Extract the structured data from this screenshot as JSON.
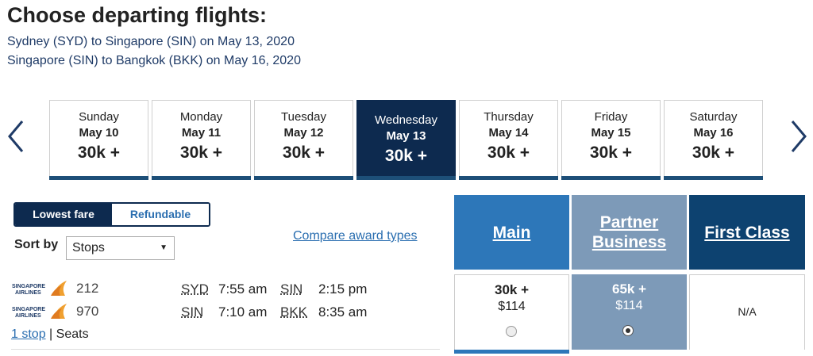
{
  "page": {
    "title": "Choose departing flights:",
    "routes": [
      "Sydney (SYD) to Singapore (SIN) on May 13, 2020",
      "Singapore (SIN) to Bangkok (BKK) on May 16, 2020"
    ]
  },
  "days": [
    {
      "day": "Sunday",
      "date": "May 10",
      "price": "30k +"
    },
    {
      "day": "Monday",
      "date": "May 11",
      "price": "30k +"
    },
    {
      "day": "Tuesday",
      "date": "May 12",
      "price": "30k +"
    },
    {
      "day": "Wednesday",
      "date": "May 13",
      "price": "30k +"
    },
    {
      "day": "Thursday",
      "date": "May 14",
      "price": "30k +"
    },
    {
      "day": "Friday",
      "date": "May 15",
      "price": "30k +"
    },
    {
      "day": "Saturday",
      "date": "May 16",
      "price": "30k +"
    }
  ],
  "selected_day": "Wednesday",
  "fare_toggle": {
    "lowest": "Lowest fare",
    "refundable": "Refundable"
  },
  "sort": {
    "label": "Sort by",
    "value": "Stops"
  },
  "compare_link": "Compare award types",
  "columns": {
    "main": "Main",
    "partner": "Partner Business",
    "first": "First Class"
  },
  "flight": {
    "segments": [
      {
        "airline": "SINGAPORE AIRLINES",
        "number": "212",
        "from": "SYD",
        "dep": "7:55 am",
        "to": "SIN",
        "arr": "2:15 pm"
      },
      {
        "airline": "SINGAPORE AIRLINES",
        "number": "970",
        "from": "SIN",
        "dep": "7:10 am",
        "to": "BKK",
        "arr": "8:35 am"
      }
    ],
    "stops_link": "1 stop",
    "separator": "|",
    "seats": "Seats",
    "fares": {
      "main": {
        "miles": "30k +",
        "cash": "$114"
      },
      "partner": {
        "miles": "65k +",
        "cash": "$114"
      },
      "first": {
        "na": "N/A"
      }
    }
  },
  "colors": {
    "navy": "#0d2a4f",
    "main": "#2d77b9",
    "partner": "#7d9ab8",
    "first": "#0d4270",
    "link": "#2a6eb0"
  }
}
